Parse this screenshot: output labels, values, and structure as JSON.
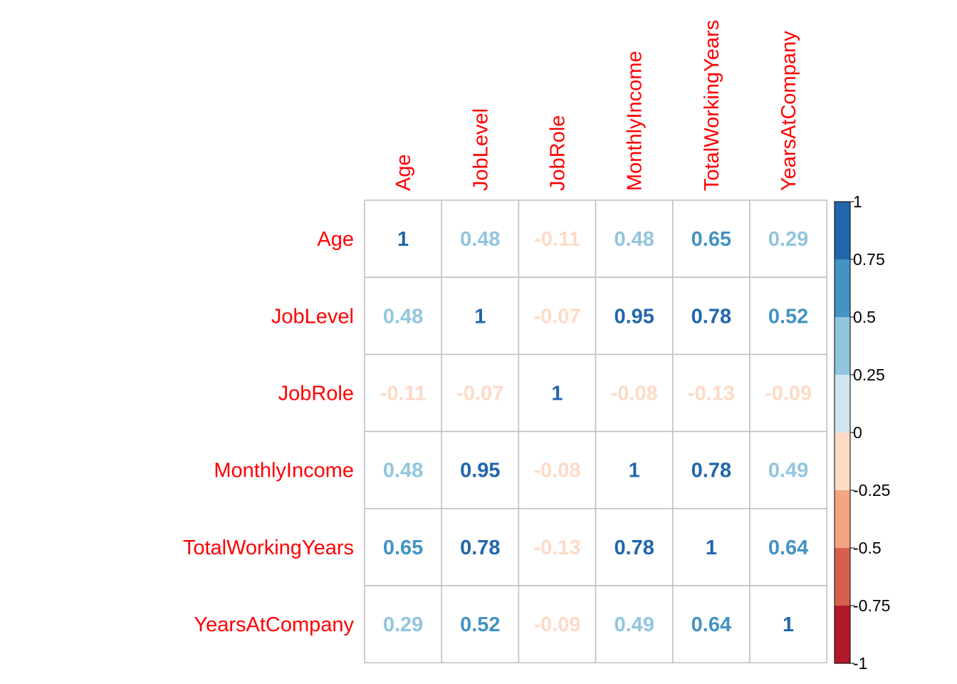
{
  "chart_data": {
    "type": "heatmap",
    "variables": [
      "Age",
      "JobLevel",
      "JobRole",
      "MonthlyIncome",
      "TotalWorkingYears",
      "YearsAtCompany"
    ],
    "matrix": [
      [
        1,
        0.48,
        -0.11,
        0.48,
        0.65,
        0.29
      ],
      [
        0.48,
        1,
        -0.07,
        0.95,
        0.78,
        0.52
      ],
      [
        -0.11,
        -0.07,
        1,
        -0.08,
        -0.13,
        -0.09
      ],
      [
        0.48,
        0.95,
        -0.08,
        1,
        0.78,
        0.49
      ],
      [
        0.65,
        0.78,
        -0.13,
        0.78,
        1,
        0.64
      ],
      [
        0.29,
        0.52,
        -0.09,
        0.49,
        0.64,
        1
      ]
    ],
    "value_labels": [
      [
        "1",
        "0.48",
        "-0.11",
        "0.48",
        "0.65",
        "0.29"
      ],
      [
        "0.48",
        "1",
        "-0.07",
        "0.95",
        "0.78",
        "0.52"
      ],
      [
        "-0.11",
        "-0.07",
        "1",
        "-0.08",
        "-0.13",
        "-0.09"
      ],
      [
        "0.48",
        "0.95",
        "-0.08",
        "1",
        "0.78",
        "0.49"
      ],
      [
        "0.65",
        "0.78",
        "-0.13",
        "0.78",
        "1",
        "0.64"
      ],
      [
        "0.29",
        "0.52",
        "-0.09",
        "0.49",
        "0.64",
        "1"
      ]
    ],
    "color_scale": {
      "range": [
        -1,
        1
      ],
      "tick_labels": [
        "1",
        "0.75",
        "0.5",
        "0.25",
        "0",
        "-0.25",
        "-0.5",
        "-0.75",
        "-1"
      ],
      "bins_low_to_high": [
        "#b2182b",
        "#d6604d",
        "#f4a582",
        "#fddbc7",
        "#d1e5f0",
        "#92c5de",
        "#4393c3",
        "#2166ac"
      ]
    },
    "label_color": "#ff0000",
    "grid": true,
    "legend": "right"
  }
}
